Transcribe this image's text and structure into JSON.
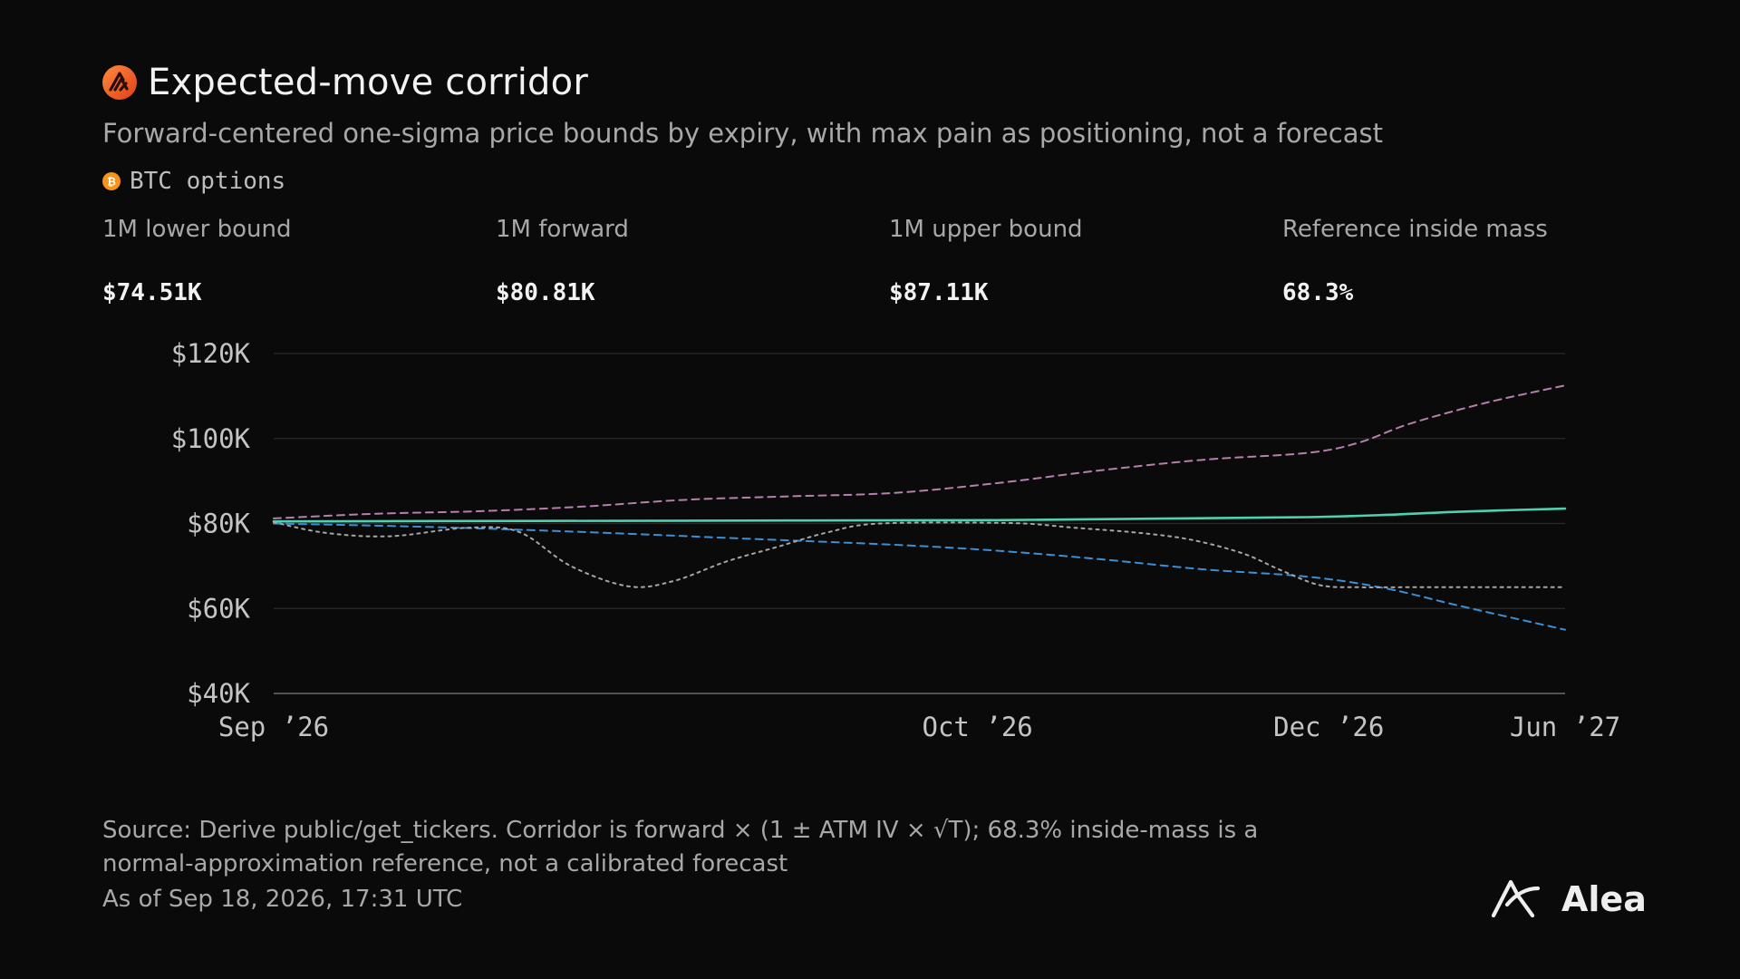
{
  "header": {
    "title": "Expected-move corridor",
    "subtitle": "Forward-centered one-sigma price bounds by expiry, with max pain as positioning, not a forecast",
    "asset": "BTC options",
    "brand_icon": "swirl-logo-icon",
    "coin_icon": "bitcoin-icon"
  },
  "kpis": [
    {
      "label": "1M lower bound",
      "value": "$74.51K"
    },
    {
      "label": "1M forward",
      "value": "$80.81K"
    },
    {
      "label": "1M upper bound",
      "value": "$87.11K"
    },
    {
      "label": "Reference inside mass",
      "value": "68.3%"
    }
  ],
  "chart_data": {
    "type": "line",
    "x_ticks": [
      "Sep ’26",
      "Oct ’26",
      "Dec ’26",
      "Jun ’27"
    ],
    "y_ticks": [
      "$120K",
      "$100K",
      "$80K",
      "$60K",
      "$40K"
    ],
    "ylim": [
      40000,
      120000
    ],
    "grid": true,
    "legend": "none",
    "series": [
      {
        "color": "#b57fae",
        "style": "dashed",
        "points": [
          [
            0,
            81200
          ],
          [
            8,
            82300
          ],
          [
            16,
            82900
          ],
          [
            24,
            84000
          ],
          [
            32,
            85600
          ],
          [
            40,
            86400
          ],
          [
            48,
            87200
          ],
          [
            56,
            89500
          ],
          [
            64,
            92500
          ],
          [
            72,
            95000
          ],
          [
            80,
            96600
          ],
          [
            84,
            99000
          ],
          [
            88,
            103500
          ],
          [
            94,
            108500
          ],
          [
            100,
            112500
          ]
        ]
      },
      {
        "color": "#4fd1b0",
        "style": "solid",
        "points": [
          [
            0,
            80500
          ],
          [
            20,
            80600
          ],
          [
            40,
            80700
          ],
          [
            56,
            80800
          ],
          [
            70,
            81200
          ],
          [
            80,
            81500
          ],
          [
            86,
            82000
          ],
          [
            92,
            82800
          ],
          [
            100,
            83500
          ]
        ]
      },
      {
        "color": "#3a8fd6",
        "style": "dashed",
        "points": [
          [
            0,
            80000
          ],
          [
            12,
            79200
          ],
          [
            24,
            78000
          ],
          [
            36,
            76500
          ],
          [
            48,
            75000
          ],
          [
            56,
            73600
          ],
          [
            64,
            71600
          ],
          [
            72,
            69200
          ],
          [
            80,
            67500
          ],
          [
            86,
            64800
          ],
          [
            92,
            60500
          ],
          [
            100,
            55000
          ]
        ]
      },
      {
        "color": "#a6a6a6",
        "style": "dotted",
        "points": [
          [
            0,
            80300
          ],
          [
            4,
            77800
          ],
          [
            9,
            77000
          ],
          [
            15,
            79000
          ],
          [
            19,
            78000
          ],
          [
            23,
            70000
          ],
          [
            27.5,
            65200
          ],
          [
            31,
            66500
          ],
          [
            35,
            71000
          ],
          [
            39,
            74500
          ],
          [
            43,
            78000
          ],
          [
            47,
            80000
          ],
          [
            57,
            80100
          ],
          [
            62,
            79000
          ],
          [
            67,
            77800
          ],
          [
            71,
            76200
          ],
          [
            75,
            73000
          ],
          [
            78,
            69000
          ],
          [
            81,
            65500
          ],
          [
            84,
            65000
          ],
          [
            88,
            65000
          ],
          [
            100,
            65000
          ]
        ]
      }
    ]
  },
  "footer": {
    "source": "Source: Derive public/get_tickers. Corridor is forward × (1 ± ATM IV × √T); 68.3% inside-mass is a normal-approximation reference, not a calibrated forecast",
    "as_of": "As of Sep 18, 2026, 17:31 UTC"
  },
  "logo": {
    "text": "Alea",
    "icon": "alea-logo-icon"
  },
  "colors": {
    "background": "#0a0a0a",
    "upper": "#b57fae",
    "forward": "#4fd1b0",
    "lower": "#3a8fd6",
    "max_pain": "#a6a6a6",
    "brand_orange": "#f26b2b",
    "coin_orange": "#f7931a"
  }
}
